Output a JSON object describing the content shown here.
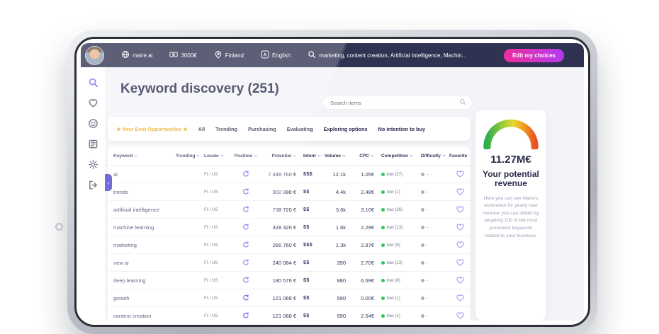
{
  "topbar": {
    "brand": "maire.ai",
    "budget": "3000€",
    "country": "Finland",
    "language": "English",
    "keywords_summary": "marketing, content creation, Artificial Intelligence, Machin...",
    "edit_button": "Edit my choices"
  },
  "sidebar": {
    "items": [
      {
        "id": "search",
        "active": true
      },
      {
        "id": "favorites",
        "active": false
      },
      {
        "id": "insights",
        "active": false
      },
      {
        "id": "reports",
        "active": false
      },
      {
        "id": "settings",
        "active": false
      },
      {
        "id": "logout",
        "active": false
      }
    ]
  },
  "main": {
    "title": "Keyword discovery (251)",
    "search_placeholder": "Search items",
    "filters": [
      {
        "label": "★ Your Best Opportunities ★",
        "highlighted": true
      },
      {
        "label": "All"
      },
      {
        "label": "Trending"
      },
      {
        "label": "Purchasing"
      },
      {
        "label": "Evaluating"
      },
      {
        "label": "Exploring options"
      },
      {
        "label": "No intention to buy"
      }
    ]
  },
  "table": {
    "columns": [
      "Keyword",
      "Trending",
      "Locale",
      "Position",
      "Potential",
      "Intent",
      "Volume",
      "CPC",
      "Competition",
      "Difficulty",
      "Favorite"
    ],
    "rows": [
      {
        "keyword": "ai",
        "locale": "FI / US",
        "potential": "7 448 760 €",
        "intent": "$$$",
        "volume": "12.1k",
        "cpc": "1.05€",
        "competition": "low (27)",
        "difficulty": "-"
      },
      {
        "keyword": "trends",
        "locale": "FI / US",
        "potential": "902 880 €",
        "intent": "$$",
        "volume": "4.4k",
        "cpc": "2.48€",
        "competition": "low (1)",
        "difficulty": "-"
      },
      {
        "keyword": "artificial intelligence",
        "locale": "FI / US",
        "potential": "738 720 €",
        "intent": "$$",
        "volume": "3.6k",
        "cpc": "3.10€",
        "competition": "low (26)",
        "difficulty": "-"
      },
      {
        "keyword": "machine learning",
        "locale": "FI / US",
        "potential": "328 320 €",
        "intent": "$$",
        "volume": "1.6k",
        "cpc": "2.29€",
        "competition": "low (13)",
        "difficulty": "-"
      },
      {
        "keyword": "marketing",
        "locale": "FI / US",
        "potential": "266 760 €",
        "intent": "$$$",
        "volume": "1.3k",
        "cpc": "2.87€",
        "competition": "low (9)",
        "difficulty": "-"
      },
      {
        "keyword": "new ai",
        "locale": "FI / US",
        "potential": "240 084 €",
        "intent": "$$",
        "volume": "390",
        "cpc": "2.70€",
        "competition": "low (13)",
        "difficulty": "-"
      },
      {
        "keyword": "deep learning",
        "locale": "FI / US",
        "potential": "180 576 €",
        "intent": "$$",
        "volume": "880",
        "cpc": "6.59€",
        "competition": "low (8)",
        "difficulty": "-"
      },
      {
        "keyword": "growth",
        "locale": "FI / US",
        "potential": "121 068 €",
        "intent": "$$",
        "volume": "590",
        "cpc": "0.00€",
        "competition": "low (1)",
        "difficulty": "-"
      },
      {
        "keyword": "content creation",
        "locale": "FI / US",
        "potential": "121 068 €",
        "intent": "$$",
        "volume": "590",
        "cpc": "2.54€",
        "competition": "low (1)",
        "difficulty": "-"
      }
    ]
  },
  "revenue_panel": {
    "amount": "11.27M€",
    "title": "Your potential revenue",
    "description": "Here you can see Maire's estimation for yearly new revenue you can obtain by targeting 100 of the most prominent keywords related to your business."
  },
  "colors": {
    "accent_purple": "#7b5cf0",
    "pink": "#ee2f9e",
    "green": "#35c75a",
    "navy": "#2f3251",
    "highlight_yellow": "#f0a81c"
  }
}
